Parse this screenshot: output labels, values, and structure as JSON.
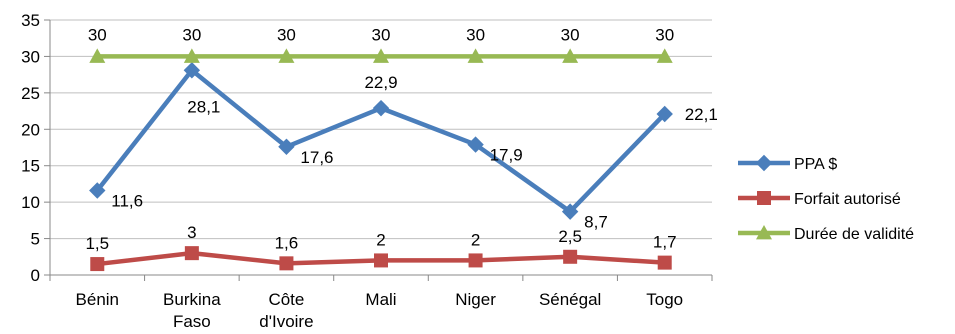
{
  "chart_data": {
    "type": "line",
    "categories": [
      [
        "Bénin"
      ],
      [
        "Burkina",
        "Faso"
      ],
      [
        "Côte",
        "d'Ivoire"
      ],
      [
        "Mali"
      ],
      [
        "Niger"
      ],
      [
        "Sénégal"
      ],
      [
        "Togo"
      ]
    ],
    "ylim": [
      0,
      35
    ],
    "yticks": [
      0,
      5,
      10,
      15,
      20,
      25,
      30,
      35
    ],
    "grid": true,
    "legend": "right",
    "series": [
      {
        "name": "PPA $",
        "color": "#4a7ebb",
        "marker": "diamond",
        "values": [
          11.6,
          28.1,
          17.6,
          22.9,
          17.9,
          8.7,
          22.1
        ],
        "labels": [
          "11,6",
          "28,1",
          "17,6",
          "22,9",
          "17,9",
          "8,7",
          "22,1"
        ]
      },
      {
        "name": "Forfait autorisé",
        "color": "#be4b48",
        "marker": "square",
        "values": [
          1.5,
          3,
          1.6,
          2,
          2,
          2.5,
          1.7
        ],
        "labels": [
          "1,5",
          "3",
          "1,6",
          "2",
          "2",
          "2,5",
          "1,7"
        ]
      },
      {
        "name": "Durée de validité",
        "color": "#98b954",
        "marker": "triangle",
        "values": [
          30,
          30,
          30,
          30,
          30,
          30,
          30
        ],
        "labels": [
          "30",
          "30",
          "30",
          "30",
          "30",
          "30",
          "30"
        ]
      }
    ]
  }
}
